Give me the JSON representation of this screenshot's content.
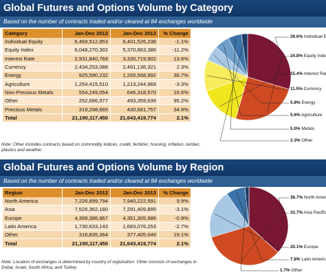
{
  "category": {
    "title": "Global Futures and Options Volume by Category",
    "subtitle": "Based on the number of contracts traded and/or cleared at 84 exchanges worldwide",
    "headers": [
      "Category",
      "Jan-Dec 2012",
      "Jan-Dec 2013",
      "% Change"
    ],
    "rows": [
      [
        "Individual Equity",
        "6,469,512,853",
        "6,401,526,238",
        "-1.1%"
      ],
      [
        "Equity Index",
        "6,048,270,302",
        "5,370,863,386",
        "-11.2%"
      ],
      [
        "Interest Rate",
        "2,931,840,769",
        "3,330,719,902",
        "13.6%"
      ],
      [
        "Currency",
        "2,434,253,088",
        "2,491,136,321",
        "2.3%"
      ],
      [
        "Energy",
        "925,590,232",
        "1,265,568,992",
        "36.7%"
      ],
      [
        "Agriculture",
        "1,254,415,510",
        "1,213,244,969",
        "-3.3%"
      ],
      [
        "Non-Precious Metals",
        "554,249,054",
        "646,318,570",
        "16.6%"
      ],
      [
        "Other",
        "252,686,977",
        "493,359,639",
        "95.2%"
      ],
      [
        "Precious Metals",
        "319,298,665",
        "430,681,757",
        "34.9%"
      ]
    ],
    "total": [
      "Total",
      "21,190,117,450",
      "21,643,419,774",
      "2.1%"
    ],
    "note": "Note: Other includes contracts based on commodity indices, credit, fertilizer, housing, inflation, lumber, plastics and weather."
  },
  "region": {
    "title": "Global Futures and Options Volume by Region",
    "subtitle": "Based on the number of contracts traded and/or cleared at 84 exchanges worldwide",
    "headers": [
      "Region",
      "Jan-Dec 2012",
      "Jan-Dec 2013",
      "% Change"
    ],
    "rows": [
      [
        "North America",
        "7,226,899,794",
        "7,940,222,591",
        "9.9%"
      ],
      [
        "Asia",
        "7,526,362,180",
        "7,291,409,895",
        "-3.1%"
      ],
      [
        "Europe",
        "4,389,386,967",
        "4,351,305,986",
        "-0.9%"
      ],
      [
        "Latin America",
        "1,730,633,143",
        "1,683,076,253",
        "-2.7%"
      ],
      [
        "Other",
        "316,835,364",
        "377,405,049",
        "19.1%"
      ]
    ],
    "total": [
      "Total",
      "21,190,117,450",
      "21,643,419,774",
      "2.1%"
    ],
    "note": "Note: Location of exchanges is determined by country of registration. Other consists of exchanges in Dubai, Israel, South Africa, and Turkey."
  },
  "chart_data": [
    {
      "type": "pie",
      "slices": [
        {
          "label": "Individual Equities",
          "value": 29.6,
          "text": "29.6%",
          "color": "#7a1734"
        },
        {
          "label": "Equity Index",
          "value": 24.8,
          "text": "24.8%",
          "color": "#cf4a22"
        },
        {
          "label": "Interest Rate",
          "value": 15.4,
          "text": "15.4%",
          "color": "#f1e51e"
        },
        {
          "label": "Currency",
          "value": 11.5,
          "text": "11.5%",
          "color": "#f6ec5c"
        },
        {
          "label": "Energy",
          "value": 5.8,
          "text": "5.8%",
          "color": "#a8c8e4"
        },
        {
          "label": "Agriculture",
          "value": 5.6,
          "text": "5.6%",
          "color": "#6f9fcb"
        },
        {
          "label": "Metals",
          "value": 5.0,
          "text": "5.0%",
          "color": "#3c73a8"
        },
        {
          "label": "Other",
          "value": 2.3,
          "text": "2.3%",
          "color": "#1b3d6b"
        }
      ]
    },
    {
      "type": "pie",
      "slices": [
        {
          "label": "North America",
          "value": 36.7,
          "text": "36.7%",
          "color": "#7a1734"
        },
        {
          "label": "Asia Pacific",
          "value": 33.7,
          "text": "33.7%",
          "color": "#cf4a22"
        },
        {
          "label": "Europe",
          "value": 20.1,
          "text": "20.1%",
          "color": "#a8c8e4"
        },
        {
          "label": "Latin America",
          "value": 7.8,
          "text": "7.8%",
          "color": "#3c73a8"
        },
        {
          "label": "Other",
          "value": 1.7,
          "text": "1.7%",
          "color": "#1b3d6b"
        }
      ]
    }
  ]
}
